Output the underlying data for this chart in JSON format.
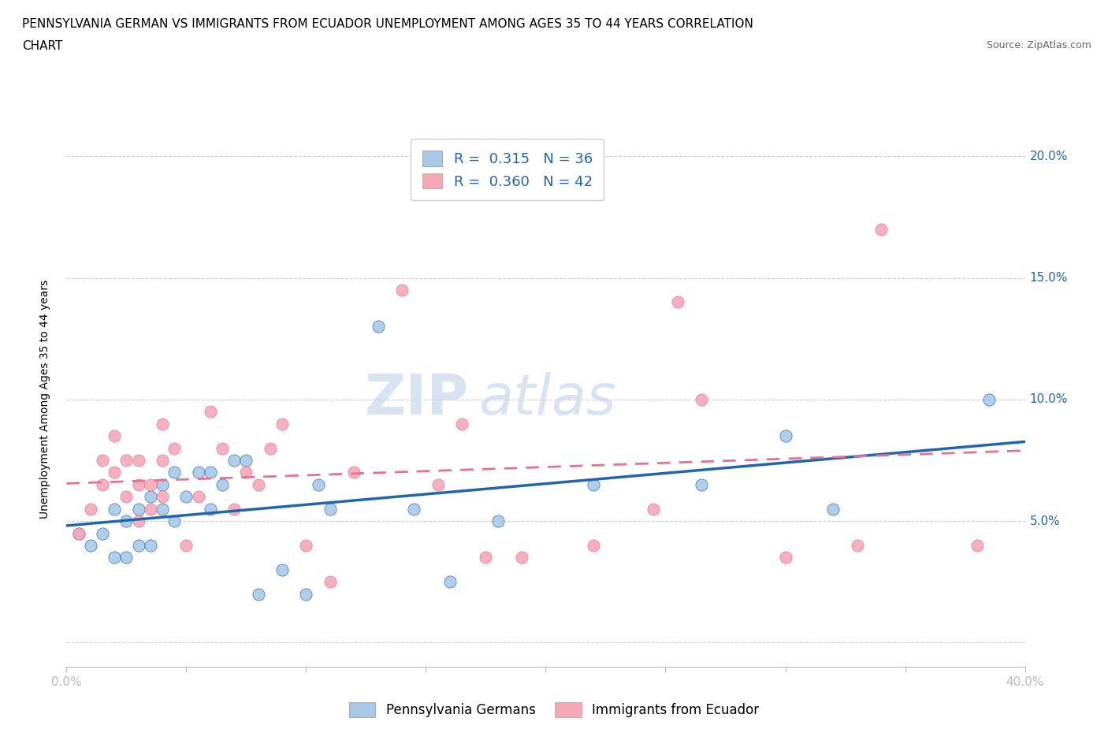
{
  "title_line1": "PENNSYLVANIA GERMAN VS IMMIGRANTS FROM ECUADOR UNEMPLOYMENT AMONG AGES 35 TO 44 YEARS CORRELATION",
  "title_line2": "CHART",
  "source_text": "Source: ZipAtlas.com",
  "ylabel": "Unemployment Among Ages 35 to 44 years",
  "watermark_part1": "ZIP",
  "watermark_part2": "atlas",
  "legend_label1": "Pennsylvania Germans",
  "legend_label2": "Immigrants from Ecuador",
  "R1": 0.315,
  "N1": 36,
  "R2": 0.36,
  "N2": 42,
  "color_blue": "#a8c8e8",
  "color_pink": "#f4a8b8",
  "color_blue_line": "#2166ac",
  "color_pink_line": "#e87090",
  "color_label": "#2166ac",
  "xmin": 0.0,
  "xmax": 0.4,
  "ymin": -0.01,
  "ymax": 0.21,
  "y_ticks": [
    0.0,
    0.05,
    0.1,
    0.15,
    0.2
  ],
  "y_tick_labels": [
    "",
    "5.0%",
    "10.0%",
    "15.0%",
    "20.0%"
  ],
  "x_ticks": [
    0.0,
    0.05,
    0.1,
    0.15,
    0.2,
    0.25,
    0.3,
    0.35,
    0.4
  ],
  "scatter_blue_x": [
    0.005,
    0.01,
    0.015,
    0.02,
    0.02,
    0.025,
    0.025,
    0.03,
    0.03,
    0.035,
    0.035,
    0.04,
    0.04,
    0.045,
    0.045,
    0.05,
    0.055,
    0.06,
    0.06,
    0.065,
    0.07,
    0.075,
    0.08,
    0.09,
    0.1,
    0.105,
    0.11,
    0.13,
    0.145,
    0.16,
    0.18,
    0.22,
    0.265,
    0.3,
    0.32,
    0.385
  ],
  "scatter_blue_y": [
    0.045,
    0.04,
    0.045,
    0.035,
    0.055,
    0.035,
    0.05,
    0.04,
    0.055,
    0.04,
    0.06,
    0.055,
    0.065,
    0.05,
    0.07,
    0.06,
    0.07,
    0.055,
    0.07,
    0.065,
    0.075,
    0.075,
    0.02,
    0.03,
    0.02,
    0.065,
    0.055,
    0.13,
    0.055,
    0.025,
    0.05,
    0.065,
    0.065,
    0.085,
    0.055,
    0.1
  ],
  "scatter_pink_x": [
    0.005,
    0.01,
    0.015,
    0.015,
    0.02,
    0.02,
    0.025,
    0.025,
    0.03,
    0.03,
    0.03,
    0.035,
    0.035,
    0.04,
    0.04,
    0.04,
    0.045,
    0.05,
    0.055,
    0.06,
    0.065,
    0.07,
    0.075,
    0.08,
    0.085,
    0.09,
    0.1,
    0.11,
    0.12,
    0.14,
    0.155,
    0.165,
    0.175,
    0.19,
    0.22,
    0.245,
    0.255,
    0.265,
    0.3,
    0.33,
    0.34,
    0.38
  ],
  "scatter_pink_y": [
    0.045,
    0.055,
    0.065,
    0.075,
    0.07,
    0.085,
    0.06,
    0.075,
    0.05,
    0.065,
    0.075,
    0.055,
    0.065,
    0.06,
    0.075,
    0.09,
    0.08,
    0.04,
    0.06,
    0.095,
    0.08,
    0.055,
    0.07,
    0.065,
    0.08,
    0.09,
    0.04,
    0.025,
    0.07,
    0.145,
    0.065,
    0.09,
    0.035,
    0.035,
    0.04,
    0.055,
    0.14,
    0.1,
    0.035,
    0.04,
    0.17,
    0.04
  ],
  "title_fontsize": 11,
  "axis_label_fontsize": 10,
  "tick_fontsize": 11,
  "source_fontsize": 9,
  "legend_fontsize": 13,
  "watermark_fontsize_zip": 52,
  "watermark_fontsize_atlas": 52,
  "background_color": "#ffffff",
  "grid_color": "#cccccc"
}
